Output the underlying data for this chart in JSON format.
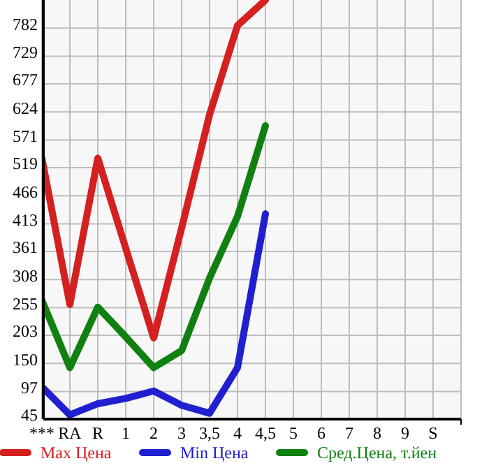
{
  "chart_data": {
    "type": "line",
    "categories": [
      "***",
      "RA",
      "R",
      "1",
      "2",
      "3",
      "3,5",
      "4",
      "4,5",
      "5",
      "6",
      "7",
      "8",
      "9",
      "S"
    ],
    "series": [
      {
        "name": "Max Цена",
        "color": "#d42020",
        "values": [
          537,
          261,
          537,
          367,
          198,
          405,
          619,
          787,
          835,
          null,
          null,
          null,
          null,
          null,
          null
        ]
      },
      {
        "name": "Min Цена",
        "color": "#2020d0",
        "values": [
          106,
          53,
          74,
          84,
          98,
          71,
          56,
          142,
          432,
          null,
          null,
          null,
          null,
          null,
          null
        ]
      },
      {
        "name": "Сред.Цена, т.йен",
        "color": "#108010",
        "values": [
          269,
          142,
          256,
          200,
          142,
          174,
          311,
          427,
          598,
          null,
          null,
          null,
          null,
          null,
          null
        ]
      }
    ],
    "ylim": [
      45,
      835
    ],
    "yticks": [
      45,
      97,
      150,
      203,
      255,
      308,
      361,
      413,
      466,
      519,
      571,
      624,
      677,
      729,
      782
    ],
    "grid": true,
    "legend": "bottom",
    "marker": "none",
    "line_style": "solid"
  }
}
